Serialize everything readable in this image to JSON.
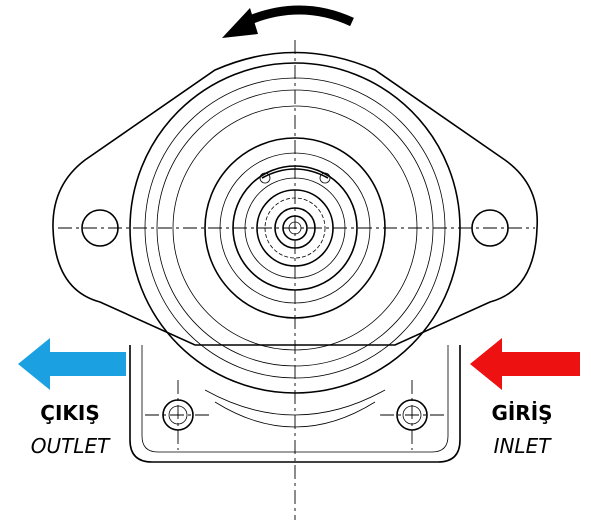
{
  "labels": {
    "outlet": {
      "title": "ÇIKIŞ",
      "subtitle": "OUTLET"
    },
    "inlet": {
      "title": "GİRİŞ",
      "subtitle": "INLET"
    }
  }
}
